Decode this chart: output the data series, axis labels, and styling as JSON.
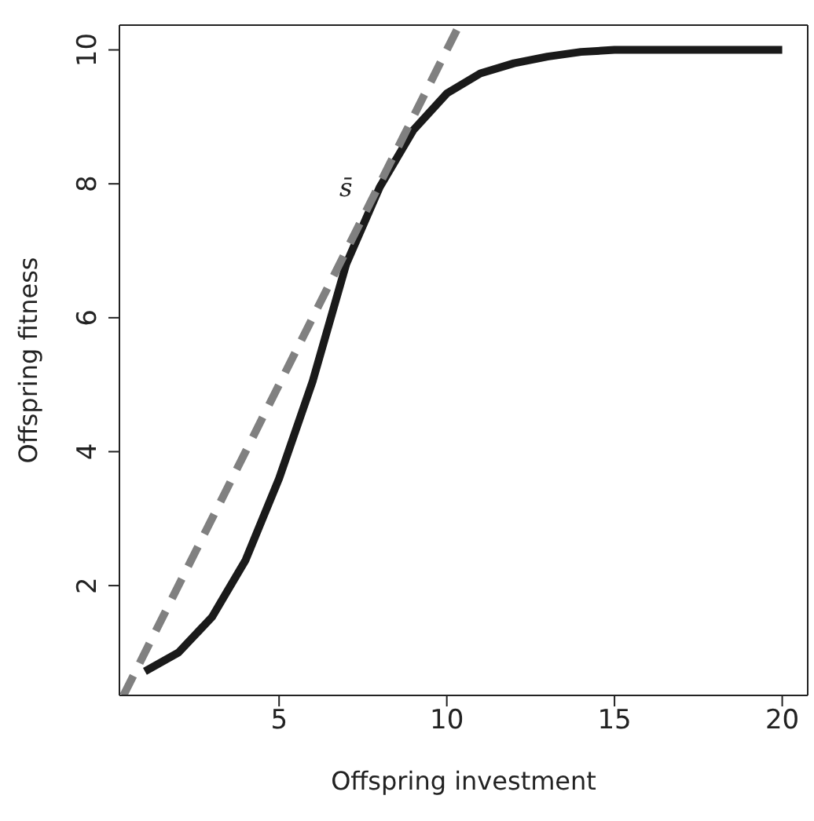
{
  "chart_data": {
    "type": "line",
    "xlabel": "Offspring investment",
    "ylabel": "Offspring fitness",
    "xlim": [
      0.24,
      20.76
    ],
    "ylim": [
      0.36,
      10.37
    ],
    "xticks": [
      5,
      10,
      15,
      20
    ],
    "yticks": [
      2,
      4,
      6,
      8,
      10
    ],
    "marker": "none",
    "series": [
      {
        "color": "#1a1a1a",
        "line_style": "solid",
        "x": [
          1,
          2,
          3,
          4,
          5,
          6,
          7,
          8,
          9,
          10,
          11,
          12,
          13,
          14,
          15,
          16,
          17,
          18,
          19,
          20
        ],
        "values": [
          0.72,
          1.0,
          1.53,
          2.38,
          3.6,
          5.05,
          6.8,
          7.95,
          8.8,
          9.35,
          9.65,
          9.8,
          9.9,
          9.97,
          10,
          10,
          10,
          10,
          10,
          10
        ]
      },
      {
        "color": "#808080",
        "line_style": "dashed",
        "x": [
          0.36,
          10.37
        ],
        "values": [
          0.36,
          10.37
        ]
      }
    ],
    "annotations": [
      "s̄"
    ]
  }
}
